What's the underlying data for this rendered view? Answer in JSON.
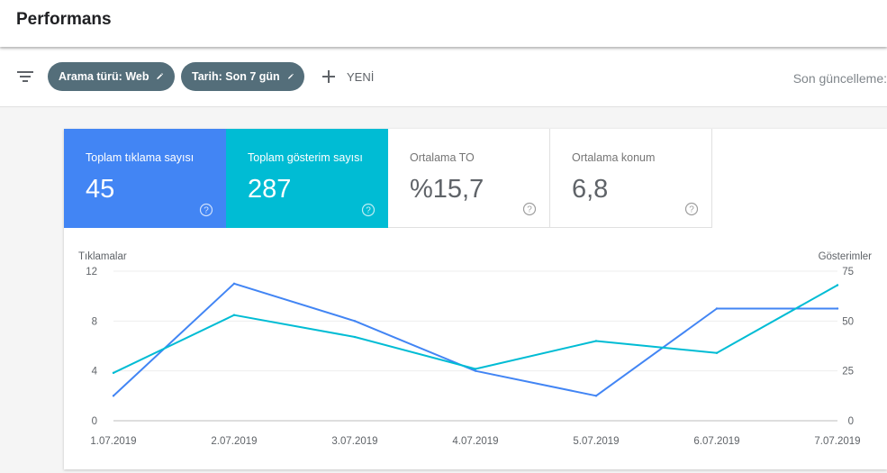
{
  "header": {
    "title": "Performans"
  },
  "toolbar": {
    "filter_icon": "filter-list-icon",
    "chips": [
      {
        "label": "Arama türü: Web",
        "icon": "pencil-icon"
      },
      {
        "label": "Tarih: Son 7 gün",
        "icon": "pencil-icon"
      }
    ],
    "new_label": "YENİ",
    "last_update_label": "Son güncelleme:"
  },
  "metrics": [
    {
      "label": "Toplam tıklama sayısı",
      "value": "45",
      "color": "#4285f4",
      "selected": true
    },
    {
      "label": "Toplam gösterim sayısı",
      "value": "287",
      "color": "#00bcd4",
      "selected": true
    },
    {
      "label": "Ortalama TO",
      "value": "%15,7",
      "selected": false
    },
    {
      "label": "Ortalama konum",
      "value": "6,8",
      "selected": false
    }
  ],
  "colors": {
    "clicks": "#4285f4",
    "impressions": "#00bcd4",
    "chip": "#546e7a"
  },
  "chart_data": {
    "type": "line",
    "x": [
      "1.07.2019",
      "2.07.2019",
      "3.07.2019",
      "4.07.2019",
      "5.07.2019",
      "6.07.2019",
      "7.07.2019"
    ],
    "left_axis": {
      "label": "Tıklamalar",
      "ticks": [
        "0",
        "4",
        "8",
        "12"
      ],
      "range": [
        0,
        12
      ]
    },
    "right_axis": {
      "label": "Gösterimler",
      "ticks": [
        "0",
        "25",
        "50",
        "75"
      ],
      "range": [
        0,
        75
      ]
    },
    "series": [
      {
        "key": "clicks",
        "axis": "left",
        "color": "#4285f4",
        "values": [
          2,
          11,
          8,
          4,
          2,
          9,
          9
        ]
      },
      {
        "key": "impressions",
        "axis": "right",
        "color": "#00bcd4",
        "values": [
          24,
          53,
          42,
          26,
          40,
          34,
          68
        ]
      }
    ],
    "grid": true
  }
}
